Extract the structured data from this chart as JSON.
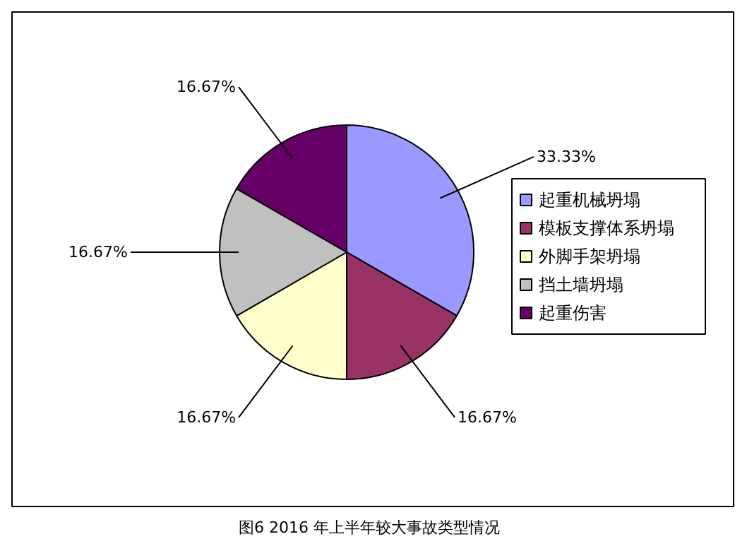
{
  "chart_data": {
    "type": "pie",
    "categories": [
      "起重机械坍塌",
      "模板支撑体系坍塌",
      "外脚手架坍塌",
      "挡土墙坍塌",
      "起重伤害"
    ],
    "values": [
      33.33,
      16.67,
      16.67,
      16.67,
      16.67
    ],
    "colors": [
      "#9999ff",
      "#993366",
      "#ffffcc",
      "#c0c0c0",
      "#660066"
    ],
    "value_labels": [
      "33.33%",
      "16.67%",
      "16.67%",
      "16.67%",
      "16.67%"
    ],
    "legend": "right",
    "annotations": [
      "图6   2016 年上半年较大事故类型情况"
    ]
  }
}
